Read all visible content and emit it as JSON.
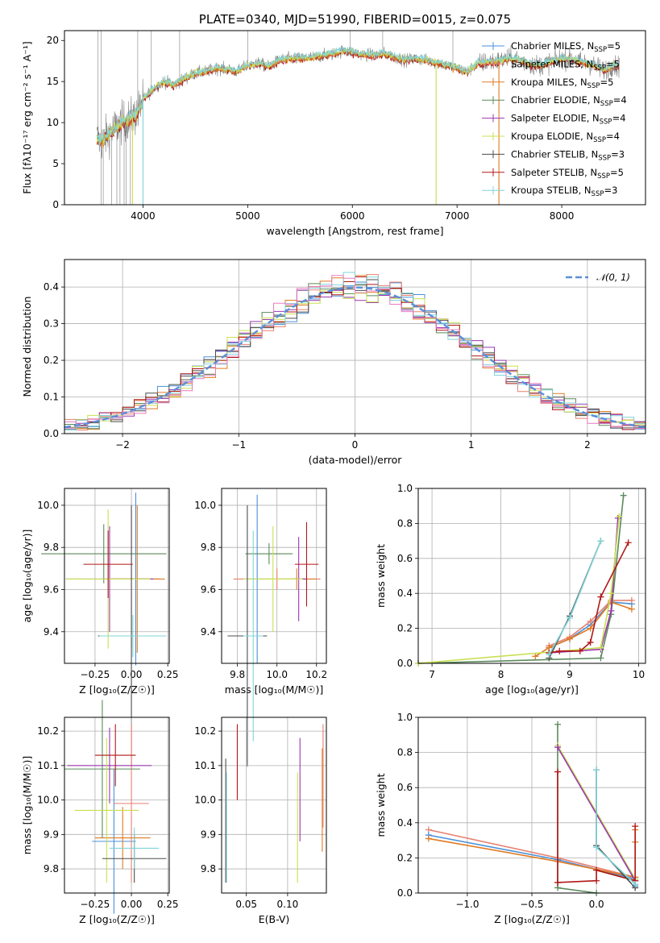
{
  "colors": {
    "Chabrier MILES": "#4a90d9",
    "Salpeter MILES": "#e8806f",
    "Kroupa MILES": "#e07b24",
    "Chabrier ELODIE": "#5b8a5b",
    "Salpeter ELODIE": "#9b37b0",
    "Kroupa ELODIE": "#c8e050",
    "Chabrier STELIB": "#4d4d4d",
    "Salpeter STELIB": "#b01818",
    "Kroupa STELIB": "#80d4d8",
    "spectrum": "#7f7f7f",
    "gaussian": "#5b8fd9",
    "pink": "#e87cc0"
  },
  "chart_data": [
    {
      "id": "spectrum",
      "type": "line",
      "title": "PLATE=0340, MJD=51990, FIBERID=0015, z=0.075",
      "xlabel": "wavelength [Angstrom, rest frame]",
      "ylabel": "Flux [fλ10⁻¹⁷ erg cm⁻² s⁻¹ A⁻¹]",
      "xlim": [
        3250,
        8800
      ],
      "ylim": [
        0,
        21.2
      ],
      "xticks": [
        "4000",
        "5000",
        "6000",
        "7000",
        "8000"
      ],
      "yticks": [
        "0",
        "5",
        "10",
        "15",
        "20"
      ],
      "grid": false,
      "legend_placement": "upper-right",
      "legend": [
        {
          "label": "Chabrier MILES, N",
          "sub": "SSP",
          "suffix": "=5"
        },
        {
          "label": "Salpeter MILES, N",
          "sub": "SSP",
          "suffix": "=5"
        },
        {
          "label": "Kroupa MILES, N",
          "sub": "SSP",
          "suffix": "=5"
        },
        {
          "label": "Chabrier ELODIE, N",
          "sub": "SSP",
          "suffix": "=4"
        },
        {
          "label": "Salpeter ELODIE, N",
          "sub": "SSP",
          "suffix": "=4"
        },
        {
          "label": "Kroupa ELODIE, N",
          "sub": "SSP",
          "suffix": "=4"
        },
        {
          "label": "Chabrier STELIB, N",
          "sub": "SSP",
          "suffix": "=3"
        },
        {
          "label": "Salpeter STELIB, N",
          "sub": "SSP",
          "suffix": "=5"
        },
        {
          "label": "Kroupa STELIB, N",
          "sub": "SSP",
          "suffix": "=3"
        }
      ],
      "continuum": [
        [
          3560,
          8.2
        ],
        [
          3600,
          7.6
        ],
        [
          3700,
          9.0
        ],
        [
          3800,
          10.0
        ],
        [
          3900,
          10.6
        ],
        [
          3950,
          11.2
        ],
        [
          4000,
          12.8
        ],
        [
          4100,
          14.2
        ],
        [
          4200,
          15.0
        ],
        [
          4300,
          14.6
        ],
        [
          4400,
          15.4
        ],
        [
          4500,
          16.0
        ],
        [
          4600,
          16.2
        ],
        [
          4700,
          16.6
        ],
        [
          4800,
          16.5
        ],
        [
          4900,
          16.2
        ],
        [
          5000,
          17.0
        ],
        [
          5100,
          17.2
        ],
        [
          5200,
          16.8
        ],
        [
          5300,
          17.6
        ],
        [
          5400,
          17.8
        ],
        [
          5500,
          17.8
        ],
        [
          5600,
          17.9
        ],
        [
          5700,
          18.1
        ],
        [
          5800,
          18.3
        ],
        [
          5900,
          18.7
        ],
        [
          6000,
          18.6
        ],
        [
          6100,
          18.3
        ],
        [
          6200,
          18.2
        ],
        [
          6300,
          18.4
        ],
        [
          6400,
          18.0
        ],
        [
          6500,
          17.6
        ],
        [
          6600,
          17.8
        ],
        [
          6700,
          17.6
        ],
        [
          6800,
          17.3
        ],
        [
          6900,
          17.0
        ],
        [
          7000,
          16.6
        ],
        [
          7100,
          16.2
        ],
        [
          7200,
          17.2
        ],
        [
          7300,
          17.4
        ],
        [
          7400,
          17.5
        ],
        [
          7500,
          17.8
        ],
        [
          7600,
          17.6
        ],
        [
          7700,
          17.1
        ],
        [
          7800,
          17.0
        ],
        [
          7900,
          17.4
        ],
        [
          8000,
          17.8
        ],
        [
          8100,
          17.7
        ],
        [
          8200,
          17.3
        ],
        [
          8300,
          17.0
        ],
        [
          8400,
          16.4
        ],
        [
          8500,
          17.0
        ],
        [
          8550,
          16.8
        ]
      ]
    },
    {
      "id": "residuals",
      "type": "histogram",
      "xlabel": "(data-model)/error",
      "ylabel": "Normed distribution",
      "xlim": [
        -2.5,
        2.5
      ],
      "ylim": [
        0,
        0.475
      ],
      "xticks": [
        "−2",
        "−1",
        "0",
        "1",
        "2"
      ],
      "yticks": [
        "0.0",
        "0.1",
        "0.2",
        "0.3",
        "0.4"
      ],
      "grid": true,
      "legend_placement": "upper-right",
      "legend": [
        {
          "label": "𝒩(0, 1)"
        }
      ]
    },
    {
      "id": "age-vs-z",
      "type": "errorbar",
      "xlabel": "Z [log₁₀(Z/Z☉)]",
      "ylabel": "age  [log₁₀(age/yr)]",
      "xlim": [
        -0.46,
        0.26
      ],
      "ylim": [
        9.25,
        10.08
      ],
      "xticks": [
        "−0.25",
        "0.00",
        "0.25"
      ],
      "yticks": [
        "9.4",
        "9.6",
        "9.8",
        "10.0"
      ],
      "grid": true,
      "points": [
        {
          "model": "Chabrier MILES",
          "x": 0.03,
          "y": 9.65,
          "xerr": 0.17,
          "yerr": 0.41
        },
        {
          "model": "Salpeter MILES",
          "x": 0.0,
          "y": 9.65,
          "xerr": 0.2,
          "yerr": 0.33
        },
        {
          "model": "Kroupa MILES",
          "x": 0.04,
          "y": 9.65,
          "xerr": 0.19,
          "yerr": 0.35
        },
        {
          "model": "Chabrier ELODIE",
          "x": -0.19,
          "y": 9.77,
          "xerr": 0.43,
          "yerr": 0.14
        },
        {
          "model": "Salpeter ELODIE",
          "x": -0.15,
          "y": 9.65,
          "xerr": 0.3,
          "yerr": 0.25
        },
        {
          "model": "Kroupa ELODIE",
          "x": -0.16,
          "y": 9.65,
          "xerr": 0.29,
          "yerr": 0.33
        },
        {
          "model": "Chabrier STELIB",
          "x": 0.0,
          "y": 9.38,
          "xerr": 0.23,
          "yerr": 0.62
        },
        {
          "model": "Salpeter STELIB",
          "x": -0.16,
          "y": 9.72,
          "xerr": 0.17,
          "yerr": 0.16
        },
        {
          "model": "Kroupa STELIB",
          "x": 0.01,
          "y": 9.38,
          "xerr": 0.23,
          "yerr": 0.1
        }
      ]
    },
    {
      "id": "age-vs-mass",
      "type": "errorbar",
      "xlabel": "mass [log₁₀(M/M☉)]",
      "xlim": [
        9.72,
        10.25
      ],
      "ylim": [
        9.25,
        10.08
      ],
      "xticks": [
        "9.8",
        "10.0",
        "10.2"
      ],
      "yticks": [
        "9.4",
        "9.6",
        "9.8",
        "10.0"
      ],
      "grid": true,
      "points": [
        {
          "model": "Chabrier MILES",
          "x": 9.9,
          "y": 9.65,
          "xerr": 0.07,
          "yerr": 0.4
        },
        {
          "model": "Salpeter MILES",
          "x": 10.0,
          "y": 9.65,
          "xerr": 0.22,
          "yerr": 0.05
        },
        {
          "model": "Kroupa MILES",
          "x": 10.1,
          "y": 9.65,
          "xerr": 0.1,
          "yerr": 0.05
        },
        {
          "model": "Chabrier ELODIE",
          "x": 9.96,
          "y": 9.77,
          "xerr": 0.12,
          "yerr": 0.05
        },
        {
          "model": "Salpeter ELODIE",
          "x": 10.11,
          "y": 9.65,
          "xerr": 0.04,
          "yerr": 0.2
        },
        {
          "model": "Kroupa ELODIE",
          "x": 9.98,
          "y": 9.65,
          "xerr": 0.15,
          "yerr": 0.25
        },
        {
          "model": "Chabrier STELIB",
          "x": 9.85,
          "y": 9.38,
          "xerr": 0.1,
          "yerr": 0.62
        },
        {
          "model": "Salpeter STELIB",
          "x": 10.15,
          "y": 9.72,
          "xerr": 0.06,
          "yerr": 0.2
        },
        {
          "model": "Kroupa STELIB",
          "x": 9.88,
          "y": 9.38,
          "xerr": 0.05,
          "yerr": 0.5
        }
      ]
    },
    {
      "id": "weight-vs-age",
      "type": "line",
      "xlabel": "age  [log₁₀(age/yr)]",
      "ylabel": "mass weight",
      "xlim": [
        6.8,
        10.1
      ],
      "ylim": [
        0,
        1.0
      ],
      "xticks": [
        "7",
        "8",
        "9",
        "10"
      ],
      "yticks": [
        "0.0",
        "0.2",
        "0.4",
        "0.6",
        "0.8",
        "1.0"
      ],
      "grid": true,
      "series": [
        {
          "model": "Chabrier MILES",
          "x": [
            8.7,
            9.0,
            9.3,
            9.6,
            9.9
          ],
          "y": [
            0.09,
            0.14,
            0.22,
            0.35,
            0.34
          ]
        },
        {
          "model": "Salpeter MILES",
          "x": [
            8.7,
            9.0,
            9.3,
            9.6,
            9.9
          ],
          "y": [
            0.1,
            0.15,
            0.24,
            0.36,
            0.36
          ]
        },
        {
          "model": "Kroupa MILES",
          "x": [
            8.5,
            8.7,
            9.0,
            9.3,
            9.6,
            9.9
          ],
          "y": [
            0.04,
            0.09,
            0.14,
            0.2,
            0.35,
            0.31
          ]
        },
        {
          "model": "Chabrier ELODIE",
          "x": [
            6.8,
            9.45,
            9.6,
            9.78
          ],
          "y": [
            0.0,
            0.03,
            0.28,
            0.96
          ]
        },
        {
          "model": "Salpeter ELODIE",
          "x": [
            8.7,
            9.45,
            9.6,
            9.7
          ],
          "y": [
            0.06,
            0.08,
            0.3,
            0.83
          ]
        },
        {
          "model": "Kroupa ELODIE",
          "x": [
            6.8,
            9.45,
            9.6,
            9.72
          ],
          "y": [
            0.0,
            0.09,
            0.4,
            0.84
          ]
        },
        {
          "model": "Chabrier STELIB",
          "x": [
            8.7,
            9.0,
            9.45
          ],
          "y": [
            0.03,
            0.27,
            0.7
          ]
        },
        {
          "model": "Salpeter STELIB",
          "x": [
            8.7,
            8.85,
            9.15,
            9.3,
            9.45,
            9.85
          ],
          "y": [
            0.06,
            0.07,
            0.07,
            0.12,
            0.38,
            0.69
          ]
        },
        {
          "model": "Kroupa STELIB",
          "x": [
            8.7,
            9.0,
            9.45
          ],
          "y": [
            0.05,
            0.26,
            0.7
          ]
        }
      ]
    },
    {
      "id": "mass-vs-z",
      "type": "errorbar",
      "xlabel": "Z [log₁₀(Z/Z☉)]",
      "ylabel": "mass [log₁₀(M/M☉)]",
      "xlim": [
        -0.46,
        0.26
      ],
      "ylim": [
        9.73,
        10.24
      ],
      "xticks": [
        "−0.25",
        "0.00",
        "0.25"
      ],
      "yticks": [
        "9.8",
        "9.9",
        "10.0",
        "10.1",
        "10.2"
      ],
      "grid": true,
      "points": [
        {
          "model": "Chabrier MILES",
          "x": -0.12,
          "y": 9.88,
          "xerr": 0.15,
          "yerr": 0.21
        },
        {
          "model": "Salpeter MILES",
          "x": 0.0,
          "y": 9.99,
          "xerr": 0.12,
          "yerr": 0.23
        },
        {
          "model": "Kroupa MILES",
          "x": -0.06,
          "y": 9.89,
          "xerr": 0.19,
          "yerr": 0.09
        },
        {
          "model": "Chabrier ELODIE",
          "x": -0.2,
          "y": 10.09,
          "xerr": 0.26,
          "yerr": 0.2
        },
        {
          "model": "Salpeter ELODIE",
          "x": -0.15,
          "y": 10.1,
          "xerr": 0.29,
          "yerr": 0.11
        },
        {
          "model": "Kroupa ELODIE",
          "x": -0.17,
          "y": 9.97,
          "xerr": 0.22,
          "yerr": 0.21
        },
        {
          "model": "Chabrier STELIB",
          "x": 0.02,
          "y": 9.83,
          "xerr": 0.22,
          "yerr": 0.07
        },
        {
          "model": "Salpeter STELIB",
          "x": -0.11,
          "y": 10.13,
          "xerr": 0.14,
          "yerr": 0.09
        },
        {
          "model": "Kroupa STELIB",
          "x": 0.02,
          "y": 9.86,
          "xerr": 0.17,
          "yerr": 0.06
        }
      ]
    },
    {
      "id": "mass-vs-ebv",
      "type": "errorbar",
      "xlabel": "E(B-V)",
      "xlim": [
        0.02,
        0.147
      ],
      "ylim": [
        9.73,
        10.24
      ],
      "xticks": [
        "0.05",
        "0.10"
      ],
      "yticks": [
        "9.8",
        "9.9",
        "10.0",
        "10.1",
        "10.2"
      ],
      "grid": true,
      "points": [
        {
          "model": "Chabrier STELIB",
          "x": 0.025,
          "y": 9.94,
          "yerr": 0.18
        },
        {
          "model": "Kroupa STELIB",
          "x": 0.026,
          "y": 9.92,
          "yerr": 0.16
        },
        {
          "model": "Salpeter STELIB",
          "x": 0.039,
          "y": 10.11,
          "yerr": 0.11
        },
        {
          "model": "Kroupa ELODIE",
          "x": 0.112,
          "y": 9.92,
          "yerr": 0.16
        },
        {
          "model": "Salpeter ELODIE",
          "x": 0.115,
          "y": 10.03,
          "yerr": 0.15
        },
        {
          "model": "Kroupa MILES",
          "x": 0.142,
          "y": 10.0,
          "yerr": 0.15
        },
        {
          "model": "Salpeter MILES",
          "x": 0.143,
          "y": 10.07,
          "yerr": 0.15
        }
      ]
    },
    {
      "id": "weight-vs-z",
      "type": "line",
      "xlabel": "Z [log₁₀(Z/Z☉)]",
      "ylabel": "mass weight",
      "xlim": [
        -1.38,
        0.38
      ],
      "ylim": [
        0,
        1.0
      ],
      "xticks": [
        "−1.0",
        "−0.5",
        "0.0"
      ],
      "yticks": [
        "0.0",
        "0.2",
        "0.4",
        "0.6",
        "0.8",
        "1.0"
      ],
      "grid": true,
      "series": [
        {
          "model": "Salpeter MILES",
          "x": [
            -1.3,
            -0.3,
            0.3,
            0.3
          ],
          "y": [
            0.36,
            0.2,
            0.09,
            0.05
          ]
        },
        {
          "model": "Chabrier MILES",
          "x": [
            -1.3,
            -0.3,
            0.3,
            0.3
          ],
          "y": [
            0.33,
            0.19,
            0.08,
            0.04
          ]
        },
        {
          "model": "Kroupa MILES",
          "x": [
            -1.3,
            -0.3,
            0.3,
            0.3,
            0.3
          ],
          "y": [
            0.31,
            0.18,
            0.09,
            0.29,
            0.36
          ]
        },
        {
          "model": "Chabrier ELODIE",
          "x": [
            -0.3,
            -0.3,
            0.0
          ],
          "y": [
            0.96,
            0.03,
            0.0
          ]
        },
        {
          "model": "Kroupa ELODIE",
          "x": [
            -0.3,
            0.3
          ],
          "y": [
            0.84,
            0.08
          ]
        },
        {
          "model": "Salpeter ELODIE",
          "x": [
            -0.3,
            0.3
          ],
          "y": [
            0.83,
            0.07
          ]
        },
        {
          "model": "Salpeter STELIB",
          "x": [
            -0.3,
            -0.3,
            0.0,
            0.0,
            0.3,
            0.3
          ],
          "y": [
            0.69,
            0.06,
            0.07,
            0.13,
            0.07,
            0.38
          ]
        },
        {
          "model": "Chabrier STELIB",
          "x": [
            0.0,
            0.0,
            0.3
          ],
          "y": [
            0.7,
            0.27,
            0.03
          ]
        },
        {
          "model": "Kroupa STELIB",
          "x": [
            0.0,
            0.0,
            0.3
          ],
          "y": [
            0.7,
            0.26,
            0.05
          ]
        }
      ]
    }
  ]
}
